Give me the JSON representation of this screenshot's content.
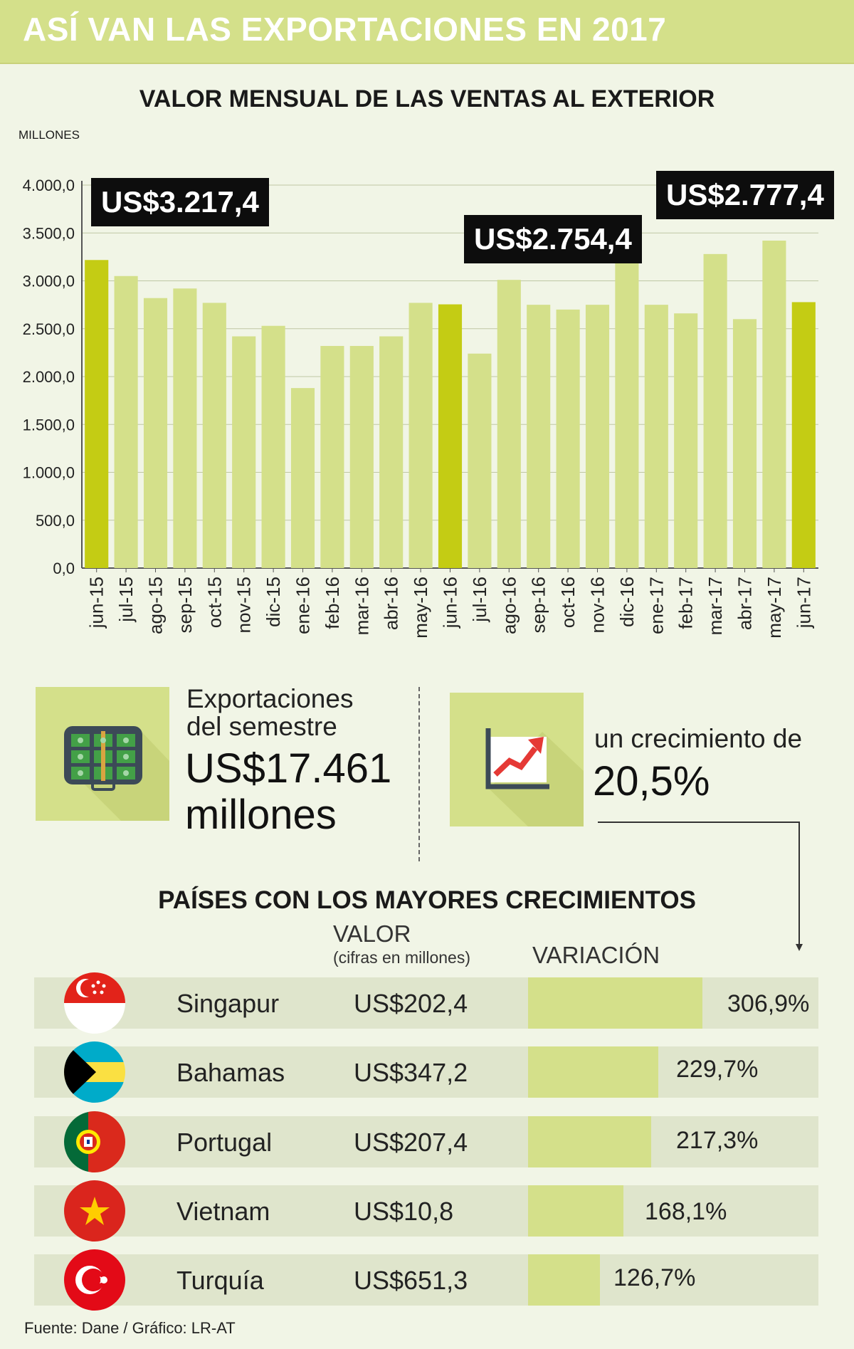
{
  "header": {
    "title": "ASÍ VAN LAS EXPORTACIONES EN 2017"
  },
  "chart_data": {
    "type": "bar",
    "title": "VALOR MENSUAL DE LAS VENTAS AL EXTERIOR",
    "ylabel": "MILLONES",
    "xlabel": "",
    "ylim": [
      0,
      4000
    ],
    "yticks": [
      "4.000,0",
      "3.500,0",
      "3.000,0",
      "2.500,0",
      "2.000,0",
      "1.500,0",
      "1.000,0",
      "500,0",
      "0,0"
    ],
    "ytick_values": [
      4000,
      3500,
      3000,
      2500,
      2000,
      1500,
      1000,
      500,
      0
    ],
    "categories": [
      "jun-15",
      "jul-15",
      "ago-15",
      "sep-15",
      "oct-15",
      "nov-15",
      "dic-15",
      "ene-16",
      "feb-16",
      "mar-16",
      "abr-16",
      "may-16",
      "jun-16",
      "jul-16",
      "ago-16",
      "sep-16",
      "oct-16",
      "nov-16",
      "dic-16",
      "ene-17",
      "feb-17",
      "mar-17",
      "abr-17",
      "may-17",
      "jun-17"
    ],
    "values": [
      3217.4,
      3050,
      2820,
      2920,
      2770,
      2420,
      2530,
      1880,
      2320,
      2320,
      2420,
      2770,
      2754.4,
      2240,
      3010,
      2750,
      2700,
      2750,
      3420,
      2750,
      2660,
      3280,
      2600,
      3420,
      2777.4
    ],
    "highlighted": [
      "jun-15",
      "jun-16",
      "jun-17"
    ],
    "colors": {
      "bar": "#d4e08a",
      "highlight": "#c4cc14"
    },
    "annotations": [
      "US$3.217,4",
      "US$2.754,4",
      "US$2.777,4"
    ]
  },
  "stats": {
    "semester_label_1": "Exportaciones",
    "semester_label_2": "del semestre",
    "semester_value_1": "US$17.461",
    "semester_value_2": "millones",
    "growth_label": "un crecimiento de",
    "growth_value": "20,5%"
  },
  "countries": {
    "title": "PAÍSES CON LOS MAYORES CRECIMIENTOS",
    "col_value": "VALOR",
    "col_value_sub": "(cifras en millones)",
    "col_variation": "VARIACIÓN",
    "rows": [
      {
        "name": "Singapur",
        "value": "US$202,4",
        "variation": "306,9%",
        "pct": 306.9
      },
      {
        "name": "Bahamas",
        "value": "US$347,2",
        "variation": "229,7%",
        "pct": 229.7
      },
      {
        "name": "Portugal",
        "value": "US$207,4",
        "variation": "217,3%",
        "pct": 217.3
      },
      {
        "name": "Vietnam",
        "value": "US$10,8",
        "variation": "168,1%",
        "pct": 168.1
      },
      {
        "name": "Turquía",
        "value": "US$651,3",
        "variation": "126,7%",
        "pct": 126.7
      }
    ]
  },
  "source": "Fuente: Dane / Gráfico: LR-AT"
}
